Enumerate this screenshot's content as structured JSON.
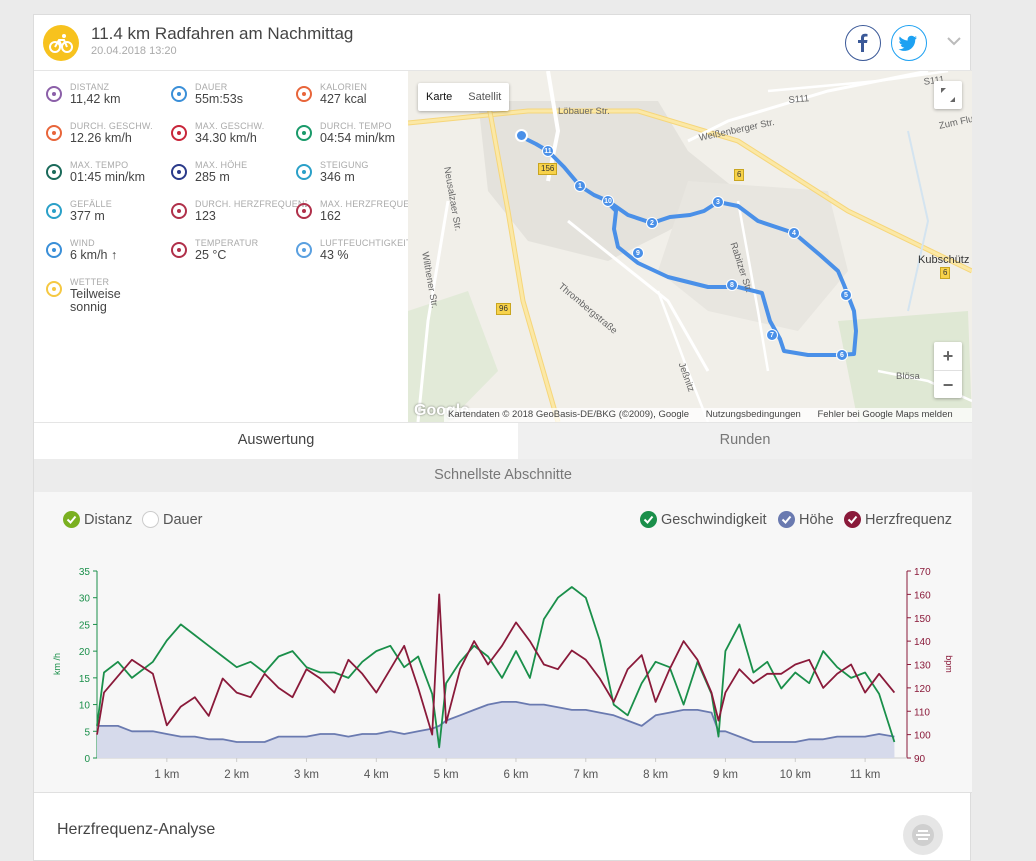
{
  "activity": {
    "title": "11.4 km Radfahren am Nachmittag",
    "date": "20.04.2018 13:20"
  },
  "stats": [
    {
      "label": "DISTANZ",
      "value": "11,42 km",
      "icon": "distance-icon",
      "color": "#8b5fa8"
    },
    {
      "label": "DAUER",
      "value": "55m:53s",
      "icon": "stopwatch-icon",
      "color": "#3a8fd8"
    },
    {
      "label": "KALORIEN",
      "value": "427 kcal",
      "icon": "flame-icon",
      "color": "#e8653a"
    },
    {
      "label": "DURCH. GESCHW.",
      "value": "12.26 km/h",
      "icon": "speedometer-icon",
      "color": "#e8653a"
    },
    {
      "label": "MAX. GESCHW.",
      "value": "34.30 km/h",
      "icon": "speedometer-icon",
      "color": "#c8263a"
    },
    {
      "label": "DURCH. TEMPO",
      "value": "04:54 min/km",
      "icon": "pace-icon",
      "color": "#1a9a6a"
    },
    {
      "label": "MAX. TEMPO",
      "value": "01:45 min/km",
      "icon": "pace-icon",
      "color": "#1a6a5a"
    },
    {
      "label": "MAX. HÖHE",
      "value": "285 m",
      "icon": "mountain-icon",
      "color": "#2a3a8a"
    },
    {
      "label": "STEIGUNG",
      "value": "346 m",
      "icon": "ascent-icon",
      "color": "#2aa0c8"
    },
    {
      "label": "GEFÄLLE",
      "value": "377 m",
      "icon": "descent-icon",
      "color": "#2aa0c8"
    },
    {
      "label": "DURCH. HERZFREQUENZ",
      "value": "123",
      "icon": "heart-icon",
      "color": "#b0304a"
    },
    {
      "label": "MAX. HERZFREQUENZ",
      "value": "162",
      "icon": "heart-icon",
      "color": "#b0304a"
    },
    {
      "label": "WIND",
      "value": "6 km/h ↑",
      "icon": "wind-icon",
      "color": "#3a8fd8"
    },
    {
      "label": "TEMPERATUR",
      "value": "25 °C",
      "icon": "thermometer-icon",
      "color": "#b0304a"
    },
    {
      "label": "LUFTFEUCHTIGKEIT",
      "value": "43 %",
      "icon": "humidity-icon",
      "color": "#5aa0e0"
    },
    {
      "label": "WETTER",
      "value": "Teilweise sonnig",
      "icon": "weather-icon",
      "color": "#f5c842"
    }
  ],
  "map": {
    "btn_map": "Karte",
    "btn_satellite": "Satellit",
    "attribution": "Kartendaten © 2018 GeoBasis-DE/BKG (©2009), Google",
    "terms": "Nutzungsbedingungen",
    "report": "Fehler bei Google Maps melden",
    "google": "Google",
    "labels": [
      "Löbauer Str.",
      "Weißenberger Str.",
      "S111",
      "S111",
      "Zum Flugpl.",
      "Neusalzaer Str.",
      "Wilthener Str.",
      "Thrombergstraße",
      "Rabitzer Str.",
      "Kubschütz",
      "Jeßnitz",
      "Blösa"
    ],
    "road_badges": [
      "156",
      "6",
      "6",
      "96"
    ],
    "markers": [
      "1",
      "2",
      "3",
      "4",
      "5",
      "6",
      "7",
      "8",
      "9",
      "10",
      "11"
    ]
  },
  "tabs": {
    "evaluation": "Auswertung",
    "laps": "Runden"
  },
  "fastest_sections": "Schnellste Abschnitte",
  "chart_legend": {
    "distance": "Distanz",
    "duration": "Dauer",
    "speed": "Geschwindigkeit",
    "elevation": "Höhe",
    "heart_rate": "Herzfrequenz"
  },
  "colors": {
    "speed": "#1a8f4a",
    "elevation": "#6a7ab0",
    "heart": "#8a1a3a",
    "distance_check": "#7ab020",
    "accent_yellow": "#f7c21e"
  },
  "chart_data": {
    "type": "line",
    "ylabel_left": "km /h",
    "ylabel_right": "bpm",
    "ylim_left": [
      0,
      35
    ],
    "ylim_right": [
      90,
      170
    ],
    "yticks_left": [
      "0",
      "5",
      "10",
      "15",
      "20",
      "25",
      "30",
      "35"
    ],
    "yticks_right": [
      "90",
      "100",
      "110",
      "120",
      "130",
      "140",
      "150",
      "160",
      "170"
    ],
    "xticks": [
      "1 km",
      "2 km",
      "3 km",
      "4 km",
      "5 km",
      "6 km",
      "7 km",
      "8 km",
      "9 km",
      "10 km",
      "11 km"
    ],
    "x": [
      0,
      0.1,
      0.3,
      0.5,
      0.8,
      1.0,
      1.2,
      1.4,
      1.6,
      1.8,
      2.0,
      2.2,
      2.4,
      2.6,
      2.8,
      3.0,
      3.2,
      3.4,
      3.6,
      3.8,
      4.0,
      4.2,
      4.4,
      4.6,
      4.8,
      4.9,
      5.0,
      5.2,
      5.4,
      5.6,
      5.8,
      6.0,
      6.2,
      6.4,
      6.6,
      6.8,
      7.0,
      7.2,
      7.4,
      7.6,
      7.8,
      8.0,
      8.2,
      8.4,
      8.6,
      8.8,
      8.9,
      9.0,
      9.2,
      9.4,
      9.6,
      9.8,
      10.0,
      10.2,
      10.4,
      10.6,
      10.8,
      11.0,
      11.2,
      11.42
    ],
    "series": [
      {
        "name": "Geschwindigkeit",
        "axis": "left",
        "values": [
          6,
          16,
          18,
          15,
          18,
          22,
          25,
          23,
          21,
          19,
          17,
          18,
          16,
          19,
          20,
          17,
          16,
          16,
          15,
          18,
          20,
          21,
          17,
          19,
          12,
          2,
          14,
          18,
          21,
          19,
          15,
          20,
          15,
          26,
          30,
          32,
          30,
          22,
          10,
          8,
          14,
          18,
          17,
          10,
          18,
          12,
          4,
          20,
          25,
          16,
          18,
          13,
          16,
          14,
          20,
          17,
          15,
          16,
          12,
          3
        ]
      },
      {
        "name": "Höhe",
        "axis": "left",
        "values": [
          6,
          6,
          6,
          5,
          5,
          4.5,
          4,
          4,
          3.5,
          3.5,
          3,
          3,
          3,
          4,
          4,
          4,
          4.5,
          4.5,
          4,
          4.5,
          4.5,
          5,
          4.5,
          5,
          5.5,
          6,
          7,
          8,
          9,
          10,
          10.5,
          10.5,
          10,
          10,
          9.5,
          9,
          9,
          8.5,
          8,
          7,
          6,
          8,
          8.5,
          9,
          9,
          8.5,
          5,
          5,
          4,
          3,
          3,
          3,
          3,
          3.5,
          3.5,
          4,
          4,
          4,
          4.5,
          4
        ]
      },
      {
        "name": "Herzfrequenz",
        "axis": "right",
        "values": [
          100,
          118,
          125,
          132,
          126,
          104,
          112,
          116,
          108,
          124,
          118,
          116,
          126,
          120,
          116,
          128,
          124,
          118,
          132,
          126,
          118,
          128,
          138,
          120,
          100,
          160,
          105,
          128,
          140,
          130,
          138,
          148,
          140,
          130,
          128,
          136,
          132,
          124,
          114,
          128,
          134,
          114,
          128,
          140,
          132,
          118,
          106,
          118,
          128,
          122,
          126,
          126,
          130,
          132,
          120,
          126,
          130,
          118,
          126,
          118
        ]
      }
    ]
  },
  "hr_analysis_title": "Herzfrequenz-Analyse"
}
